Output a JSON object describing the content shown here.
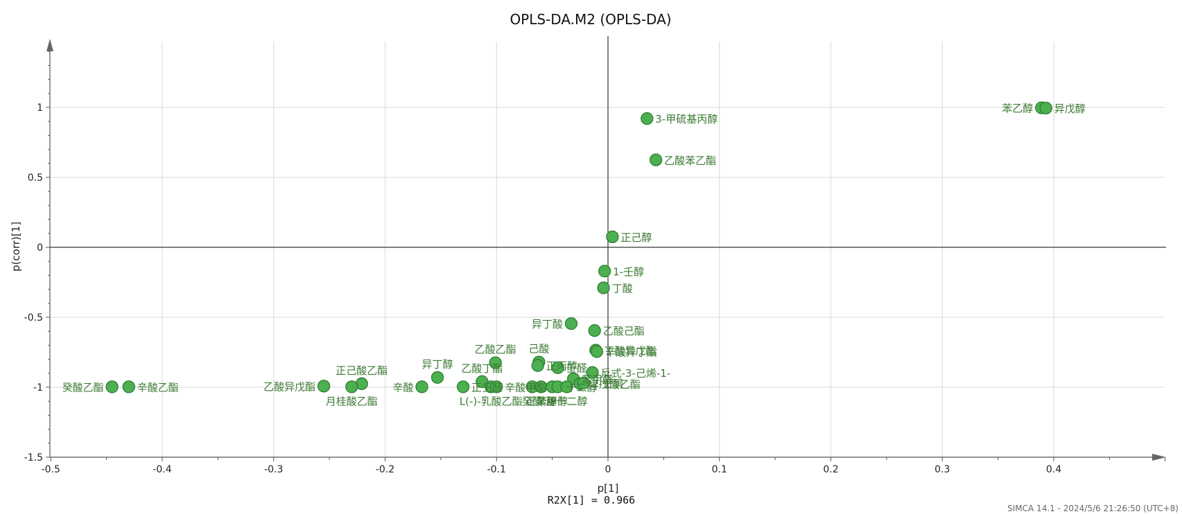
{
  "chart_data": {
    "type": "scatter",
    "title": "OPLS-DA.M2 (OPLS-DA)",
    "xlabel": "p[1]",
    "ylabel": "p(corr)[1]",
    "x_note": "R2X[1] = 0.966",
    "footer": "SIMCA 14.1 - 2024/5/6 21:26:50 (UTC+8)",
    "xlim": [
      -0.5,
      0.5
    ],
    "ylim": [
      -1.5,
      1.5
    ],
    "x_ticks": [
      -0.5,
      -0.4,
      -0.3,
      -0.2,
      -0.1,
      0,
      0.1,
      0.2,
      0.3,
      0.4
    ],
    "y_ticks": [
      -1.5,
      -1,
      -0.5,
      0,
      0.5,
      1
    ],
    "x_tick_labels": [
      "-0.5",
      "-0.4",
      "-0.3",
      "-0.2",
      "-0.1",
      "0",
      "0.1",
      "0.2",
      "0.3",
      "0.4"
    ],
    "y_tick_labels": [
      "-1.5",
      "-1",
      "-0.5",
      "0",
      "0.5",
      "1"
    ],
    "grid": true,
    "marker_color": "#4caf50",
    "marker_edge": "#2e7d32",
    "label_color": "#3c7a34",
    "points": [
      {
        "label": "苯乙醇",
        "x": 0.389,
        "y": 0.997,
        "pos": "left"
      },
      {
        "label": "异戊醇",
        "x": 0.393,
        "y": 0.995,
        "pos": "right"
      },
      {
        "label": "3-甲硫基丙醇",
        "x": 0.035,
        "y": 0.92,
        "pos": "right"
      },
      {
        "label": "乙酸苯乙酯",
        "x": 0.043,
        "y": 0.625,
        "pos": "right"
      },
      {
        "label": "正己醇",
        "x": 0.004,
        "y": 0.075,
        "pos": "right"
      },
      {
        "label": "1-壬醇",
        "x": -0.003,
        "y": -0.17,
        "pos": "right"
      },
      {
        "label": "丁酸",
        "x": -0.004,
        "y": -0.29,
        "pos": "right"
      },
      {
        "label": "异丁酸",
        "x": -0.033,
        "y": -0.545,
        "pos": "left"
      },
      {
        "label": "乙酸己酯",
        "x": -0.012,
        "y": -0.595,
        "pos": "right"
      },
      {
        "label": "丁酸异戊酯",
        "x": -0.011,
        "y": -0.735,
        "pos": "right"
      },
      {
        "label": "辛酸异丁酯",
        "x": -0.01,
        "y": -0.745,
        "pos": "right"
      },
      {
        "label": "乙酸乙酯",
        "x": -0.101,
        "y": -0.825,
        "pos": "above"
      },
      {
        "label": "己酸",
        "x": -0.062,
        "y": -0.82,
        "pos": "above"
      },
      {
        "label": "正丙醇",
        "x": -0.063,
        "y": -0.845,
        "pos": "right"
      },
      {
        "label": "壬醛",
        "x": -0.045,
        "y": -0.86,
        "pos": "right"
      },
      {
        "label": "异丁醇",
        "x": -0.153,
        "y": -0.93,
        "pos": "above"
      },
      {
        "label": "乙酸丁酯",
        "x": -0.113,
        "y": -0.96,
        "pos": "above"
      },
      {
        "label": "反式-3-己烯-1-",
        "x": -0.014,
        "y": -0.895,
        "pos": "right"
      },
      {
        "label": "苯甲醛",
        "x": -0.031,
        "y": -0.94,
        "pos": "right"
      },
      {
        "label": "异戊酸乙酯",
        "x": -0.025,
        "y": -0.975,
        "pos": "right"
      },
      {
        "label": "2-壬酮",
        "x": -0.022,
        "y": -0.97,
        "pos": "right"
      },
      {
        "label": "正己酸乙酯",
        "x": -0.221,
        "y": -0.975,
        "pos": "above"
      },
      {
        "label": "乙酸异戊酯",
        "x": -0.255,
        "y": -0.992,
        "pos": "left"
      },
      {
        "label": "月桂酸乙酯",
        "x": -0.23,
        "y": -0.997,
        "pos": "below"
      },
      {
        "label": "癸酸乙酯",
        "x": -0.445,
        "y": -0.997,
        "pos": "left"
      },
      {
        "label": "辛酸乙酯",
        "x": -0.43,
        "y": -0.997,
        "pos": "right"
      },
      {
        "label": "辛酸",
        "x": -0.167,
        "y": -0.997,
        "pos": "left"
      },
      {
        "label": "正壬醛",
        "x": -0.13,
        "y": -0.997,
        "pos": "right"
      },
      {
        "label": "L(-)-乳酸乙酯",
        "x": -0.105,
        "y": -0.997,
        "pos": "below"
      },
      {
        "label": "辛酸甲酯",
        "x": -0.1,
        "y": -0.997,
        "pos": "right"
      },
      {
        "label": "癸酸",
        "x": -0.068,
        "y": -0.997,
        "pos": "below"
      },
      {
        "label": "正癸醇",
        "x": -0.06,
        "y": -0.997,
        "pos": "below"
      },
      {
        "label": "苯甲醇",
        "x": -0.05,
        "y": -0.997,
        "pos": "below"
      },
      {
        "label": "十二醇",
        "x": -0.045,
        "y": -0.997,
        "pos": "right"
      },
      {
        "label": "正十二醇",
        "x": -0.037,
        "y": -0.997,
        "pos": "below"
      }
    ]
  }
}
